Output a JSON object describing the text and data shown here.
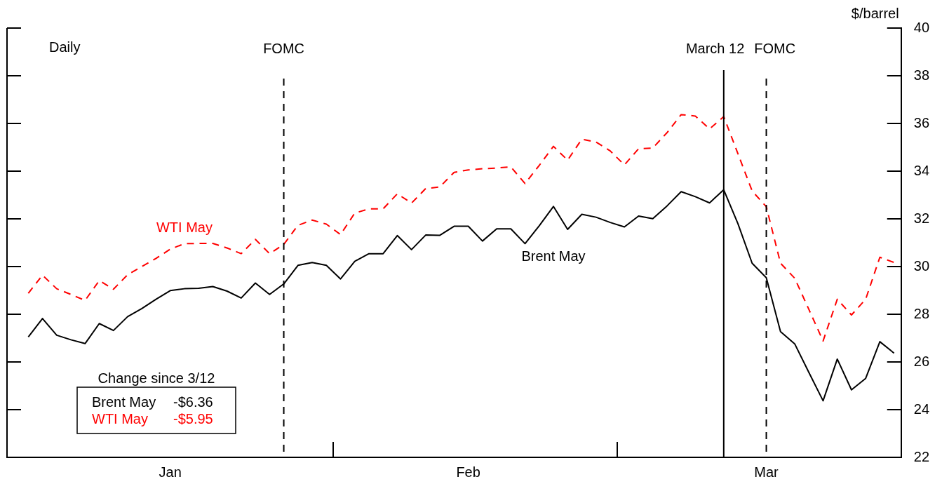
{
  "chart_data": {
    "type": "line",
    "ylabel": "$/barrel",
    "categories": [
      null,
      null,
      null,
      null,
      null,
      null,
      null,
      null,
      null,
      null,
      "Jan",
      null,
      null,
      null,
      null,
      null,
      null,
      null,
      null,
      null,
      null,
      null,
      null,
      null,
      null,
      null,
      null,
      null,
      null,
      null,
      null,
      "Feb",
      null,
      null,
      null,
      null,
      null,
      null,
      null,
      null,
      null,
      null,
      null,
      null,
      null,
      null,
      null,
      null,
      null,
      null,
      null,
      null,
      "Mar",
      null,
      null,
      null,
      null,
      null,
      null,
      null,
      null,
      null
    ],
    "series": [
      {
        "name": "Brent May",
        "color": "#000000",
        "line_style": "solid",
        "values": [
          27.05,
          27.82,
          27.12,
          26.93,
          26.77,
          27.61,
          27.32,
          27.9,
          28.24,
          28.63,
          28.99,
          29.07,
          29.09,
          29.16,
          28.97,
          28.68,
          29.31,
          28.83,
          29.27,
          30.05,
          30.17,
          30.05,
          29.48,
          30.22,
          30.54,
          30.54,
          31.3,
          30.71,
          31.32,
          31.31,
          31.69,
          31.69,
          31.07,
          31.58,
          31.58,
          30.96,
          31.71,
          32.52,
          31.56,
          32.19,
          32.07,
          31.85,
          31.66,
          32.12,
          32.01,
          32.54,
          33.14,
          32.93,
          32.67,
          33.22,
          31.8,
          30.14,
          29.53,
          27.27,
          26.76,
          25.56,
          24.37,
          26.12,
          24.83,
          25.31,
          26.85,
          26.37
        ]
      },
      {
        "name": "WTI May",
        "color": "#ff0000",
        "line_style": "dashed",
        "values": [
          28.88,
          29.64,
          29.07,
          28.83,
          28.58,
          29.41,
          29.05,
          29.66,
          30.0,
          30.34,
          30.73,
          30.96,
          30.97,
          30.97,
          30.78,
          30.54,
          31.14,
          30.54,
          30.93,
          31.73,
          31.95,
          31.78,
          31.34,
          32.24,
          32.42,
          32.42,
          33.05,
          32.66,
          33.27,
          33.34,
          33.95,
          34.05,
          34.1,
          34.13,
          34.18,
          33.48,
          34.24,
          35.04,
          34.46,
          35.34,
          35.22,
          34.85,
          34.26,
          34.94,
          34.97,
          35.61,
          36.37,
          36.31,
          35.77,
          36.29,
          34.73,
          33.17,
          32.51,
          30.14,
          29.51,
          28.2,
          26.88,
          28.63,
          27.97,
          28.63,
          30.39,
          30.17
        ]
      }
    ],
    "ylim": [
      22,
      40
    ],
    "yticks": [
      22,
      24,
      26,
      28,
      30,
      32,
      34,
      36,
      38,
      40
    ],
    "annotations": [
      "Daily",
      "FOMC",
      "March 12",
      "FOMC",
      "Change since 3/12",
      "Brent May -$6.36",
      "WTI May -$5.95"
    ],
    "legend": false,
    "marker": "none"
  }
}
